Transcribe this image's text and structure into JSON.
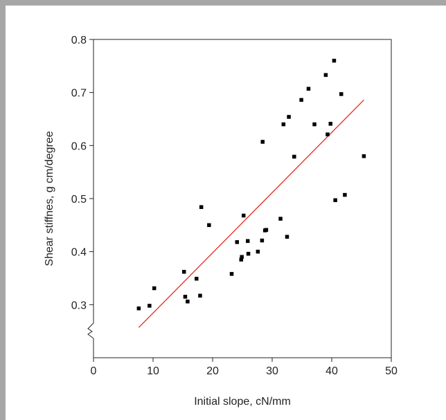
{
  "chart_data": {
    "type": "scatter",
    "title": "",
    "xlabel": "Initial slope, cN/mm",
    "ylabel": "Shear stiffnes, g cm/degree",
    "xlim": [
      0,
      50
    ],
    "ylim": [
      0.2,
      0.8
    ],
    "xticks": [
      "0",
      "10",
      "20",
      "30",
      "40",
      "50"
    ],
    "yticks": [
      "0.3",
      "0.4",
      "0.5",
      "0.6",
      "0.7",
      "0.8"
    ],
    "y_axis_break": true,
    "grid": false,
    "legend": "none",
    "series": [
      {
        "marker": "square",
        "color": "#000000",
        "points": [
          [
            7.6,
            0.293
          ],
          [
            9.4,
            0.298
          ],
          [
            10.2,
            0.331
          ],
          [
            15.2,
            0.362
          ],
          [
            15.4,
            0.315
          ],
          [
            15.8,
            0.306
          ],
          [
            17.3,
            0.349
          ],
          [
            17.9,
            0.317
          ],
          [
            18.1,
            0.484
          ],
          [
            19.4,
            0.45
          ],
          [
            23.2,
            0.358
          ],
          [
            24.1,
            0.418
          ],
          [
            24.8,
            0.385
          ],
          [
            24.9,
            0.39
          ],
          [
            25.2,
            0.468
          ],
          [
            25.9,
            0.42
          ],
          [
            26.0,
            0.396
          ],
          [
            27.6,
            0.4
          ],
          [
            28.3,
            0.421
          ],
          [
            28.4,
            0.607
          ],
          [
            28.8,
            0.44
          ],
          [
            29.0,
            0.441
          ],
          [
            31.4,
            0.462
          ],
          [
            31.9,
            0.64
          ],
          [
            32.5,
            0.428
          ],
          [
            32.8,
            0.654
          ],
          [
            33.7,
            0.579
          ],
          [
            34.9,
            0.686
          ],
          [
            36.1,
            0.707
          ],
          [
            37.1,
            0.64
          ],
          [
            39.0,
            0.733
          ],
          [
            39.3,
            0.621
          ],
          [
            39.8,
            0.641
          ],
          [
            40.4,
            0.76
          ],
          [
            40.6,
            0.497
          ],
          [
            41.6,
            0.697
          ],
          [
            42.2,
            0.507
          ],
          [
            45.4,
            0.58
          ]
        ]
      }
    ],
    "trendline": {
      "color": "#e8271d",
      "x": [
        7.6,
        45.4
      ],
      "y": [
        0.257,
        0.686
      ]
    }
  }
}
